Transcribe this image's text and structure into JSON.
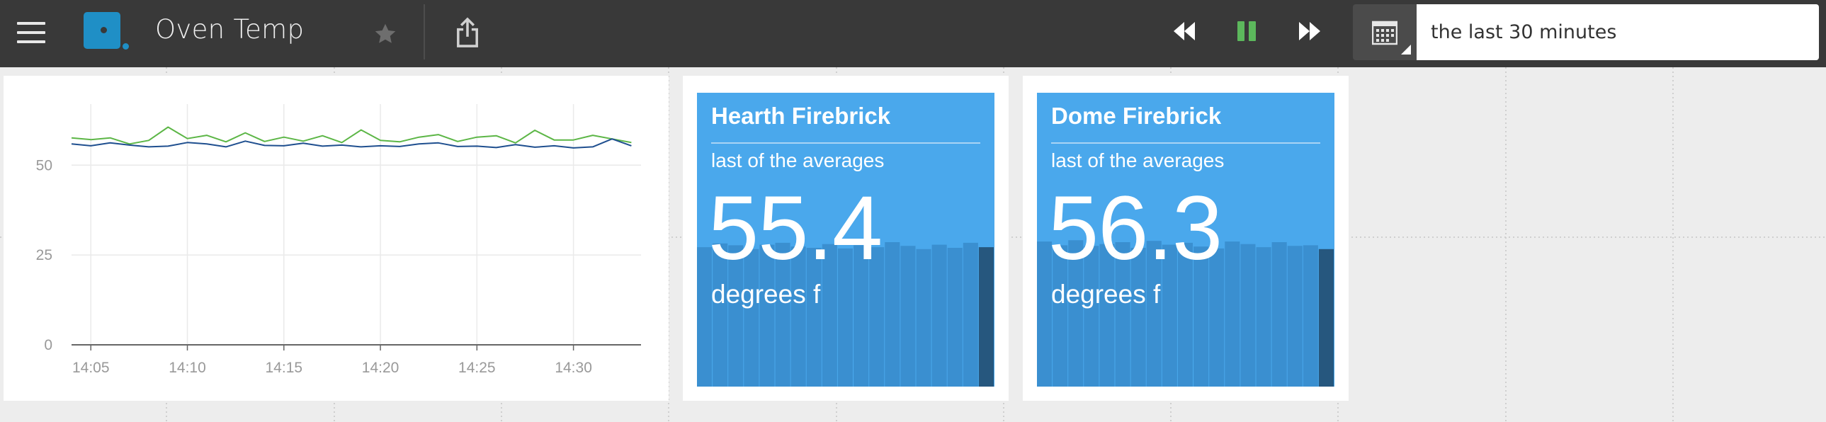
{
  "app": {
    "dashboard_title": "Oven Temp",
    "time_range": "the last 30 minutes"
  },
  "icons": {
    "menu": "hamburger-icon",
    "logo": "app-logo",
    "star": "star-icon",
    "share": "share-icon",
    "rewind": "rewind-icon",
    "pause": "pause-icon",
    "forward": "fast-forward-icon",
    "calendar": "calendar-icon"
  },
  "colors": {
    "topbar": "#393939",
    "accent_green": "#5cb85c",
    "logo_blue": "#1f8fc6",
    "tile_blue": "#4aa8ec",
    "tile_bar": "#3a8fd0",
    "tile_bar_last": "#26577e",
    "series_green": "#5cb646",
    "series_blue": "#1f4f8f"
  },
  "tiles": [
    {
      "title": "Hearth Firebrick",
      "subtitle": "last of the averages",
      "value": "55.4",
      "unit": "degrees f",
      "spark": [
        55.4,
        56,
        55.7,
        55.1,
        55.8,
        56.1,
        55.5,
        55.3,
        55.9,
        55.2,
        55.7,
        55.4,
        56.2,
        55.6,
        55.1,
        55.8,
        55.3,
        56.1,
        55.4
      ]
    },
    {
      "title": "Dome Firebrick",
      "subtitle": "last of the averages",
      "value": "56.3",
      "unit": "degrees f",
      "spark": [
        56.3,
        55.7,
        56.5,
        55.6,
        55.9,
        56.2,
        55.3,
        56.4,
        55.8,
        56.1,
        55.5,
        55.2,
        56.3,
        55.9,
        55.4,
        56.2,
        55.6,
        55.7,
        55.1
      ]
    }
  ],
  "chart_data": {
    "type": "line",
    "title": "",
    "xlabel": "",
    "ylabel": "",
    "x_ticks": [
      "14:05",
      "14:10",
      "14:15",
      "14:20",
      "14:25",
      "14:30"
    ],
    "y_ticks": [
      "0",
      "25",
      "50"
    ],
    "ylim": [
      0,
      67
    ],
    "xlim": [
      "14:04:00",
      "14:33:30"
    ],
    "grid": true,
    "legend": "none",
    "series": [
      {
        "color": "#5cb646",
        "x": [
          "14:04",
          "14:05",
          "14:06",
          "14:07",
          "14:08",
          "14:09",
          "14:10",
          "14:11",
          "14:12",
          "14:13",
          "14:14",
          "14:15",
          "14:16",
          "14:17",
          "14:18",
          "14:19",
          "14:20",
          "14:21",
          "14:22",
          "14:23",
          "14:24",
          "14:25",
          "14:26",
          "14:27",
          "14:28",
          "14:29",
          "14:30",
          "14:31",
          "14:32",
          "14:33"
        ],
        "values": [
          57.6,
          57.1,
          57.6,
          55.9,
          56.9,
          60.6,
          57.4,
          58.3,
          56.5,
          59.0,
          56.6,
          57.8,
          56.7,
          58.2,
          56.3,
          59.8,
          56.9,
          56.5,
          57.8,
          58.5,
          56.6,
          57.8,
          58.2,
          56.2,
          59.7,
          57.0,
          57.0,
          58.3,
          57.3,
          56.3
        ]
      },
      {
        "color": "#1f4f8f",
        "x": [
          "14:04",
          "14:05",
          "14:06",
          "14:07",
          "14:08",
          "14:09",
          "14:10",
          "14:11",
          "14:12",
          "14:13",
          "14:14",
          "14:15",
          "14:16",
          "14:17",
          "14:18",
          "14:19",
          "14:20",
          "14:21",
          "14:22",
          "14:23",
          "14:24",
          "14:25",
          "14:26",
          "14:27",
          "14:28",
          "14:29",
          "14:30",
          "14:31",
          "14:32",
          "14:33"
        ],
        "values": [
          55.9,
          55.4,
          56.2,
          55.6,
          55.1,
          55.3,
          56.3,
          55.9,
          55.1,
          56.7,
          55.5,
          55.4,
          56.1,
          55.3,
          55.6,
          55.1,
          55.4,
          55.2,
          55.9,
          56.2,
          55.2,
          55.3,
          54.9,
          55.7,
          55.0,
          55.4,
          54.8,
          55.1,
          57.3,
          55.4
        ]
      }
    ]
  }
}
